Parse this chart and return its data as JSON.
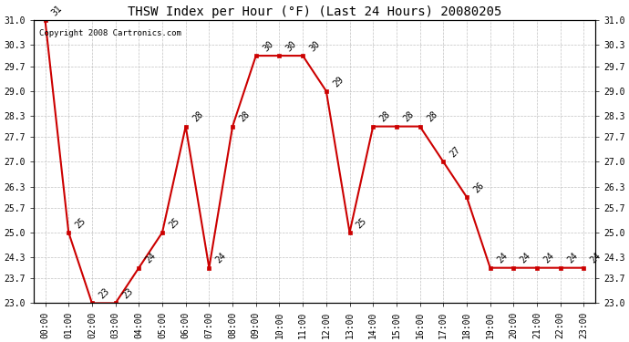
{
  "title": "THSW Index per Hour (°F) (Last 24 Hours) 20080205",
  "watermark": "Copyright 2008 Cartronics.com",
  "hours": [
    "00:00",
    "01:00",
    "02:00",
    "03:00",
    "04:00",
    "05:00",
    "06:00",
    "07:00",
    "08:00",
    "09:00",
    "10:00",
    "11:00",
    "12:00",
    "13:00",
    "14:00",
    "15:00",
    "16:00",
    "17:00",
    "18:00",
    "19:00",
    "20:00",
    "21:00",
    "22:00",
    "23:00"
  ],
  "values": [
    31,
    25,
    23,
    23,
    24,
    25,
    28,
    24,
    28,
    30,
    30,
    30,
    29,
    25,
    28,
    28,
    28,
    27,
    26,
    24,
    24,
    24,
    24,
    24
  ],
  "ylim_min": 23.0,
  "ylim_max": 31.0,
  "yticks": [
    23.0,
    23.7,
    24.3,
    25.0,
    25.7,
    26.3,
    27.0,
    27.7,
    28.3,
    29.0,
    29.7,
    30.3,
    31.0
  ],
  "line_color": "#cc0000",
  "marker_color": "#cc0000",
  "bg_color": "#ffffff",
  "grid_color": "#bbbbbb",
  "title_fontsize": 10,
  "watermark_fontsize": 6.5,
  "label_fontsize": 7,
  "annotation_fontsize": 7
}
